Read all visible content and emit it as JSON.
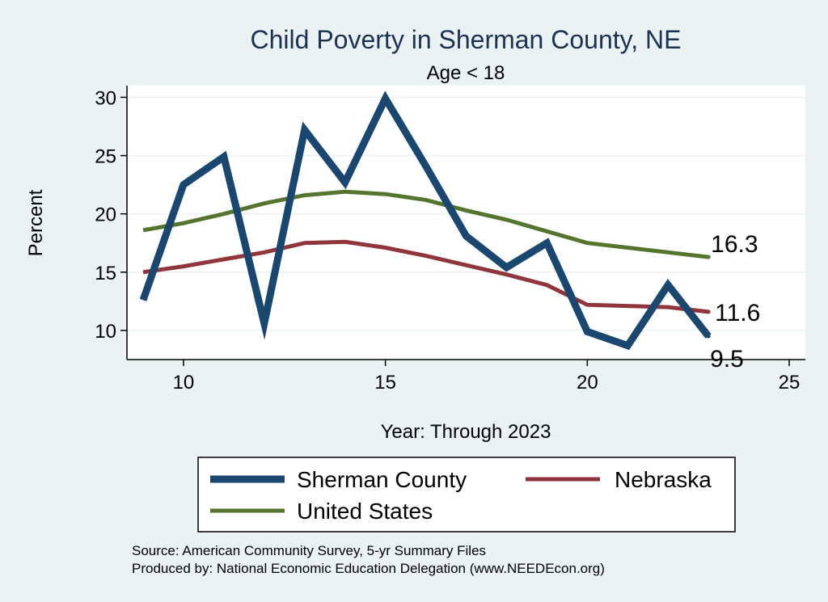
{
  "colors": {
    "background": "#eaf2f3",
    "plot_bg": "#ffffff",
    "grid": "#eaf2f3",
    "sherman": "#1a476f",
    "nebraska": "#90353b",
    "us": "#55752f"
  },
  "chart_data": {
    "type": "line",
    "title": "Child Poverty in Sherman County, NE",
    "subtitle": "Age < 18",
    "xlabel": "Year: Through 2023",
    "ylabel": "Percent",
    "xlim": [
      8.6,
      25.4
    ],
    "ylim": [
      7.5,
      31
    ],
    "xticks": [
      10,
      15,
      20,
      25
    ],
    "yticks": [
      10,
      15,
      20,
      25,
      30
    ],
    "x": [
      9,
      10,
      11,
      12,
      13,
      14,
      15,
      16,
      17,
      18,
      19,
      20,
      21,
      22,
      23
    ],
    "series": [
      {
        "name": "Sherman County",
        "color_key": "sherman",
        "width": 9,
        "values": [
          12.6,
          22.5,
          24.9,
          10.6,
          27.2,
          22.7,
          29.9,
          24.1,
          18.1,
          15.4,
          17.5,
          9.9,
          8.7,
          13.9,
          9.5
        ],
        "end_label": "9.5"
      },
      {
        "name": "Nebraska",
        "color_key": "nebraska",
        "width": 5,
        "values": [
          15.0,
          15.5,
          16.1,
          16.7,
          17.5,
          17.6,
          17.1,
          16.4,
          15.6,
          14.8,
          13.9,
          12.2,
          12.1,
          12.0,
          11.6
        ],
        "end_label": "11.6"
      },
      {
        "name": "United States",
        "color_key": "us",
        "width": 5,
        "values": [
          18.6,
          19.2,
          20.0,
          20.9,
          21.6,
          21.9,
          21.7,
          21.2,
          20.3,
          19.5,
          18.5,
          17.5,
          17.1,
          16.7,
          16.3
        ],
        "end_label": "16.3"
      }
    ],
    "legend": {
      "position": "bottom",
      "items": [
        "Sherman County",
        "Nebraska",
        "United States"
      ]
    }
  },
  "source": {
    "line1": "Source: American Community Survey, 5-yr Summary Files",
    "line2": "Produced by: National Economic Education Delegation (www.NEEDEcon.org)"
  }
}
